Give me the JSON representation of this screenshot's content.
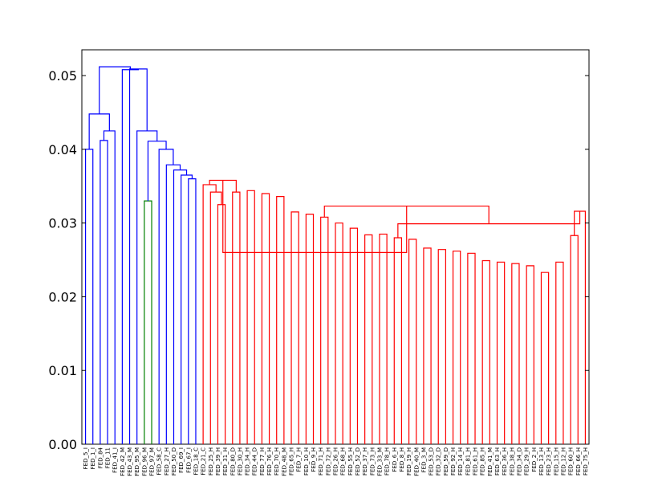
{
  "chart_data": {
    "type": "dendrogram",
    "title": "",
    "xlabel": "",
    "ylabel": "",
    "ylim": [
      0,
      0.0535
    ],
    "yticks": [
      0.0,
      0.01,
      0.02,
      0.03,
      0.04,
      0.05
    ],
    "ytick_labels": [
      "0.00",
      "0.01",
      "0.02",
      "0.03",
      "0.04",
      "0.05"
    ],
    "grid": false,
    "colors": {
      "blue": "#0000ff",
      "green": "#008000",
      "red": "#ff0000",
      "axis": "#000000"
    },
    "leaf_labels": [
      "FED_5_I",
      "FED_1_I",
      "FED_84",
      "FED_11",
      "FED_41_I",
      "FED_42_M",
      "FED_43_M",
      "FED_95_M",
      "FED_96_M",
      "FED_97_M",
      "FED_58_C",
      "FED_27_H",
      "FED_50_D",
      "FED_69_I",
      "FED_67_I",
      "FED_18_C",
      "FED_21_C",
      "FED_25_H",
      "FED_39_H",
      "FED_31_H",
      "FED_80_D",
      "FED_30_H",
      "FED_34_H",
      "FED_44_D",
      "FED_77_H",
      "FED_76_H",
      "FED_70_H",
      "FED_48_M",
      "FED_65_H",
      "FED_7_H",
      "FED_10_H",
      "FED_9_H",
      "FED_71_H",
      "FED_72_H",
      "FED_26_H",
      "FED_68_H",
      "FED_55_H",
      "FED_52_D",
      "FED_37_H",
      "FED_73_H",
      "FED_33_M",
      "FED_78_H",
      "FED_6_H",
      "FED_8_H",
      "FED_19_H",
      "FED_40_M",
      "FED_3_M",
      "FED_53_D",
      "FED_32_D",
      "FED_59_D",
      "FED_92_H",
      "FED_14_H",
      "FED_81_H",
      "FED_61_H",
      "FED_85_H",
      "FED_41_M",
      "FED_63_H",
      "FED_36_H",
      "FED_38_H",
      "FED_34_D",
      "FED_29_H",
      "FED_2_H",
      "FED_13_H",
      "FED_23_H",
      "FED_15_H",
      "FED_12_H",
      "FED_60_H",
      "FED_66_H",
      "FED_75_H"
    ],
    "links": [
      {
        "a": 0,
        "b": 1,
        "h": 0.04,
        "color": "blue"
      },
      {
        "a": 2,
        "b": 3,
        "h": 0.0412,
        "color": "blue"
      },
      {
        "a": "L1",
        "b": 4,
        "h": 0.0425,
        "color": "blue"
      },
      {
        "a": "L0",
        "b": "L2",
        "h": 0.0448,
        "color": "blue"
      },
      {
        "a": 8,
        "b": 9,
        "h": 0.033,
        "color": "green"
      },
      {
        "a": 14,
        "b": 15,
        "h": 0.036,
        "color": "blue"
      },
      {
        "a": 13,
        "b": "L5",
        "h": 0.0365,
        "color": "blue"
      },
      {
        "a": 12,
        "b": "L6",
        "h": 0.0372,
        "color": "blue"
      },
      {
        "a": 11,
        "b": "L7",
        "h": 0.0379,
        "color": "blue"
      },
      {
        "a": 10,
        "b": "L8",
        "h": 0.04,
        "color": "blue"
      },
      {
        "a": "L4",
        "b": "L9",
        "h": 0.0411,
        "color": "blue"
      },
      {
        "a": 7,
        "b": "L10",
        "h": 0.0425,
        "color": "blue"
      },
      {
        "a": 6,
        "b": "L11",
        "h": 0.0509,
        "color": "blue"
      },
      {
        "a": 5,
        "b": "L12",
        "h": 0.0508,
        "color": "blue"
      },
      {
        "a": "L3",
        "b": "L13",
        "h": 0.0512,
        "color": "blue"
      },
      {
        "a": 18,
        "b": 19,
        "h": 0.0325,
        "color": "red"
      },
      {
        "a": 17,
        "b": "L15",
        "h": 0.0342,
        "color": "red"
      },
      {
        "a": 16,
        "b": "L16",
        "h": 0.0352,
        "color": "red"
      },
      {
        "a": 20,
        "b": 21,
        "h": 0.0342,
        "color": "red"
      },
      {
        "a": "L17",
        "b": "L18",
        "h": 0.0358,
        "color": "red"
      },
      {
        "a": 22,
        "b": 23,
        "h": 0.0344,
        "color": "red"
      },
      {
        "a": 24,
        "b": 25,
        "h": 0.034,
        "color": "red"
      },
      {
        "a": 26,
        "b": 27,
        "h": 0.0336,
        "color": "red"
      },
      {
        "a": 28,
        "b": 29,
        "h": 0.0315,
        "color": "red"
      },
      {
        "a": 30,
        "b": 31,
        "h": 0.0312,
        "color": "red"
      },
      {
        "a": 32,
        "b": 33,
        "h": 0.0308,
        "color": "red"
      },
      {
        "a": 34,
        "b": 35,
        "h": 0.03,
        "color": "red"
      },
      {
        "a": 36,
        "b": 37,
        "h": 0.0293,
        "color": "red"
      },
      {
        "a": 38,
        "b": 39,
        "h": 0.0284,
        "color": "red"
      },
      {
        "a": 40,
        "b": 41,
        "h": 0.0285,
        "color": "red"
      },
      {
        "a": 42,
        "b": 43,
        "h": 0.028,
        "color": "red"
      },
      {
        "a": 44,
        "b": 45,
        "h": 0.0278,
        "color": "red"
      },
      {
        "a": 46,
        "b": 47,
        "h": 0.0266,
        "color": "red"
      },
      {
        "a": 48,
        "b": 49,
        "h": 0.0264,
        "color": "red"
      },
      {
        "a": 50,
        "b": 51,
        "h": 0.0262,
        "color": "red"
      },
      {
        "a": 52,
        "b": 53,
        "h": 0.0259,
        "color": "red"
      },
      {
        "a": 54,
        "b": 55,
        "h": 0.0249,
        "color": "red"
      },
      {
        "a": 56,
        "b": 57,
        "h": 0.0247,
        "color": "red"
      },
      {
        "a": 58,
        "b": 59,
        "h": 0.0245,
        "color": "red"
      },
      {
        "a": 60,
        "b": 61,
        "h": 0.0242,
        "color": "red"
      },
      {
        "a": 62,
        "b": 63,
        "h": 0.0233,
        "color": "red"
      },
      {
        "a": 64,
        "b": 65,
        "h": 0.0247,
        "color": "red"
      },
      {
        "a": 66,
        "b": 67,
        "h": 0.0283,
        "color": "red"
      },
      {
        "a": 68,
        "b": "L42",
        "h": 0.0316,
        "color": "red"
      },
      {
        "a": "L30",
        "b": "L43",
        "h": 0.0299,
        "color": "red"
      },
      {
        "a": "L25",
        "b": "L44",
        "h": 0.0323,
        "color": "red"
      },
      {
        "a": "L19",
        "b": "L45",
        "h": 0.026,
        "color": "red"
      }
    ]
  }
}
